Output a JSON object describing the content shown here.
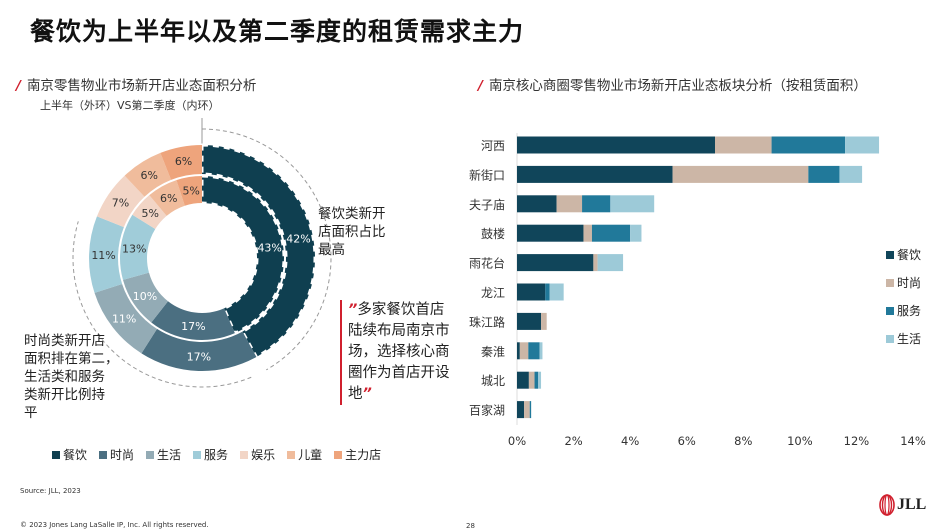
{
  "title": "餐饮为上半年以及第二季度的租赁需求主力",
  "left_section": {
    "title": "南京零售物业市场新开店业态面积分析",
    "subtitle": "上半年（外环）VS第二季度（内环）",
    "note_right": [
      "餐饮类新开",
      "店面积占比",
      "最高"
    ],
    "note_left": [
      "时尚类新开店",
      "面积排在第二，",
      "生活类和服务",
      "类新开比例持",
      "平"
    ],
    "quote_open": "”",
    "quote_text": "多家餐饮首店陆续布局南京市场，选择核心商圈作为首店开设地",
    "quote_close": "”"
  },
  "right_section": {
    "title": "南京核心商圈零售物业市场新开店业态板块分析（按租赁面积）"
  },
  "chart_data": [
    {
      "type": "pie",
      "variant": "double-donut",
      "categories": [
        "餐饮",
        "时尚",
        "生活",
        "服务",
        "娱乐",
        "儿童",
        "主力店"
      ],
      "colors": [
        "#0f3f50",
        "#4b6f81",
        "#93abb5",
        "#a0ccd9",
        "#f2d5c6",
        "#f0bc9c",
        "#eea47c"
      ],
      "series": [
        {
          "name": "上半年（外环）",
          "values": [
            42,
            17,
            11,
            11,
            7,
            6,
            6
          ]
        },
        {
          "name": "第二季度（内环）",
          "values": [
            43,
            17,
            10,
            13,
            5,
            6,
            5
          ]
        }
      ],
      "legend": [
        "餐饮",
        "时尚",
        "生活",
        "服务",
        "娱乐",
        "儿童",
        "主力店"
      ],
      "legend_position": "bottom"
    },
    {
      "type": "bar",
      "orientation": "horizontal",
      "stacked": true,
      "categories": [
        "河西",
        "新街口",
        "夫子庙",
        "鼓楼",
        "雨花台",
        "龙江",
        "珠江路",
        "秦淮",
        "城北",
        "百家湖"
      ],
      "series": [
        {
          "name": "餐饮",
          "color": "#10455a",
          "values": [
            7.0,
            5.5,
            1.4,
            2.35,
            2.7,
            1.0,
            0.85,
            0.1,
            0.42,
            0.25
          ]
        },
        {
          "name": "时尚",
          "color": "#ccb6a6",
          "values": [
            2.0,
            4.8,
            0.9,
            0.3,
            0.15,
            0,
            0.2,
            0.3,
            0.2,
            0.2
          ]
        },
        {
          "name": "服务",
          "color": "#21799a",
          "values": [
            2.6,
            1.1,
            1.0,
            1.35,
            0,
            0.15,
            0,
            0.4,
            0.13,
            0.05
          ]
        },
        {
          "name": "生活",
          "color": "#9dcad8",
          "values": [
            1.2,
            0.8,
            1.55,
            0.4,
            0.9,
            0.5,
            0,
            0.1,
            0.1,
            0
          ]
        }
      ],
      "xlim": [
        0,
        14
      ],
      "xticks": [
        "0%",
        "2%",
        "4%",
        "6%",
        "8%",
        "10%",
        "12%",
        "14%"
      ],
      "legend_position": "right"
    }
  ],
  "footer": {
    "source": "Source: JLL, 2023",
    "copyright": "© 2023 Jones Lang LaSalle IP, Inc. All rights reserved.",
    "page": "28",
    "logo": "JLL"
  }
}
